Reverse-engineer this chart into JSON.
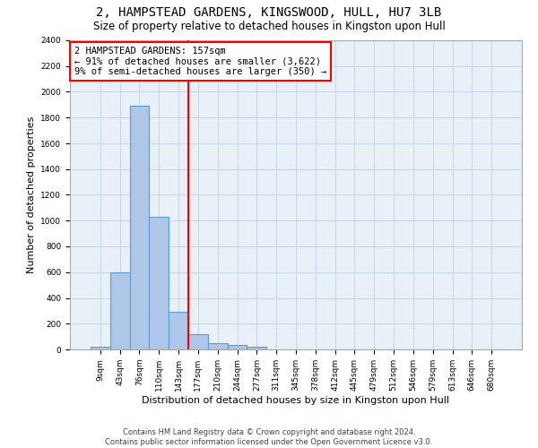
{
  "title": "2, HAMPSTEAD GARDENS, KINGSWOOD, HULL, HU7 3LB",
  "subtitle": "Size of property relative to detached houses in Kingston upon Hull",
  "xlabel": "Distribution of detached houses by size in Kingston upon Hull",
  "ylabel": "Number of detached properties",
  "footer_line1": "Contains HM Land Registry data © Crown copyright and database right 2024.",
  "footer_line2": "Contains public sector information licensed under the Open Government Licence v3.0.",
  "bin_labels": [
    "9sqm",
    "43sqm",
    "76sqm",
    "110sqm",
    "143sqm",
    "177sqm",
    "210sqm",
    "244sqm",
    "277sqm",
    "311sqm",
    "345sqm",
    "378sqm",
    "412sqm",
    "445sqm",
    "479sqm",
    "512sqm",
    "546sqm",
    "579sqm",
    "613sqm",
    "646sqm",
    "680sqm"
  ],
  "bar_values": [
    20,
    600,
    1890,
    1030,
    290,
    120,
    50,
    35,
    20,
    0,
    0,
    0,
    0,
    0,
    0,
    0,
    0,
    0,
    0,
    0,
    0
  ],
  "bar_color": "#aec6e8",
  "bar_edge_color": "#5a9fd4",
  "vline_x_index": 4.5,
  "vline_color": "red",
  "annotation_text_line1": "2 HAMPSTEAD GARDENS: 157sqm",
  "annotation_text_line2": "← 91% of detached houses are smaller (3,622)",
  "annotation_text_line3": "9% of semi-detached houses are larger (350) →",
  "annotation_box_color": "red",
  "annotation_font_size": 7.5,
  "ylim": [
    0,
    2400
  ],
  "yticks": [
    0,
    200,
    400,
    600,
    800,
    1000,
    1200,
    1400,
    1600,
    1800,
    2000,
    2200,
    2400
  ],
  "grid_color": "#c8d8e8",
  "bg_color": "#e8f0f8",
  "title_fontsize": 10,
  "subtitle_fontsize": 8.5,
  "xlabel_fontsize": 8,
  "ylabel_fontsize": 8,
  "footer_fontsize": 6,
  "tick_fontsize": 6.5
}
